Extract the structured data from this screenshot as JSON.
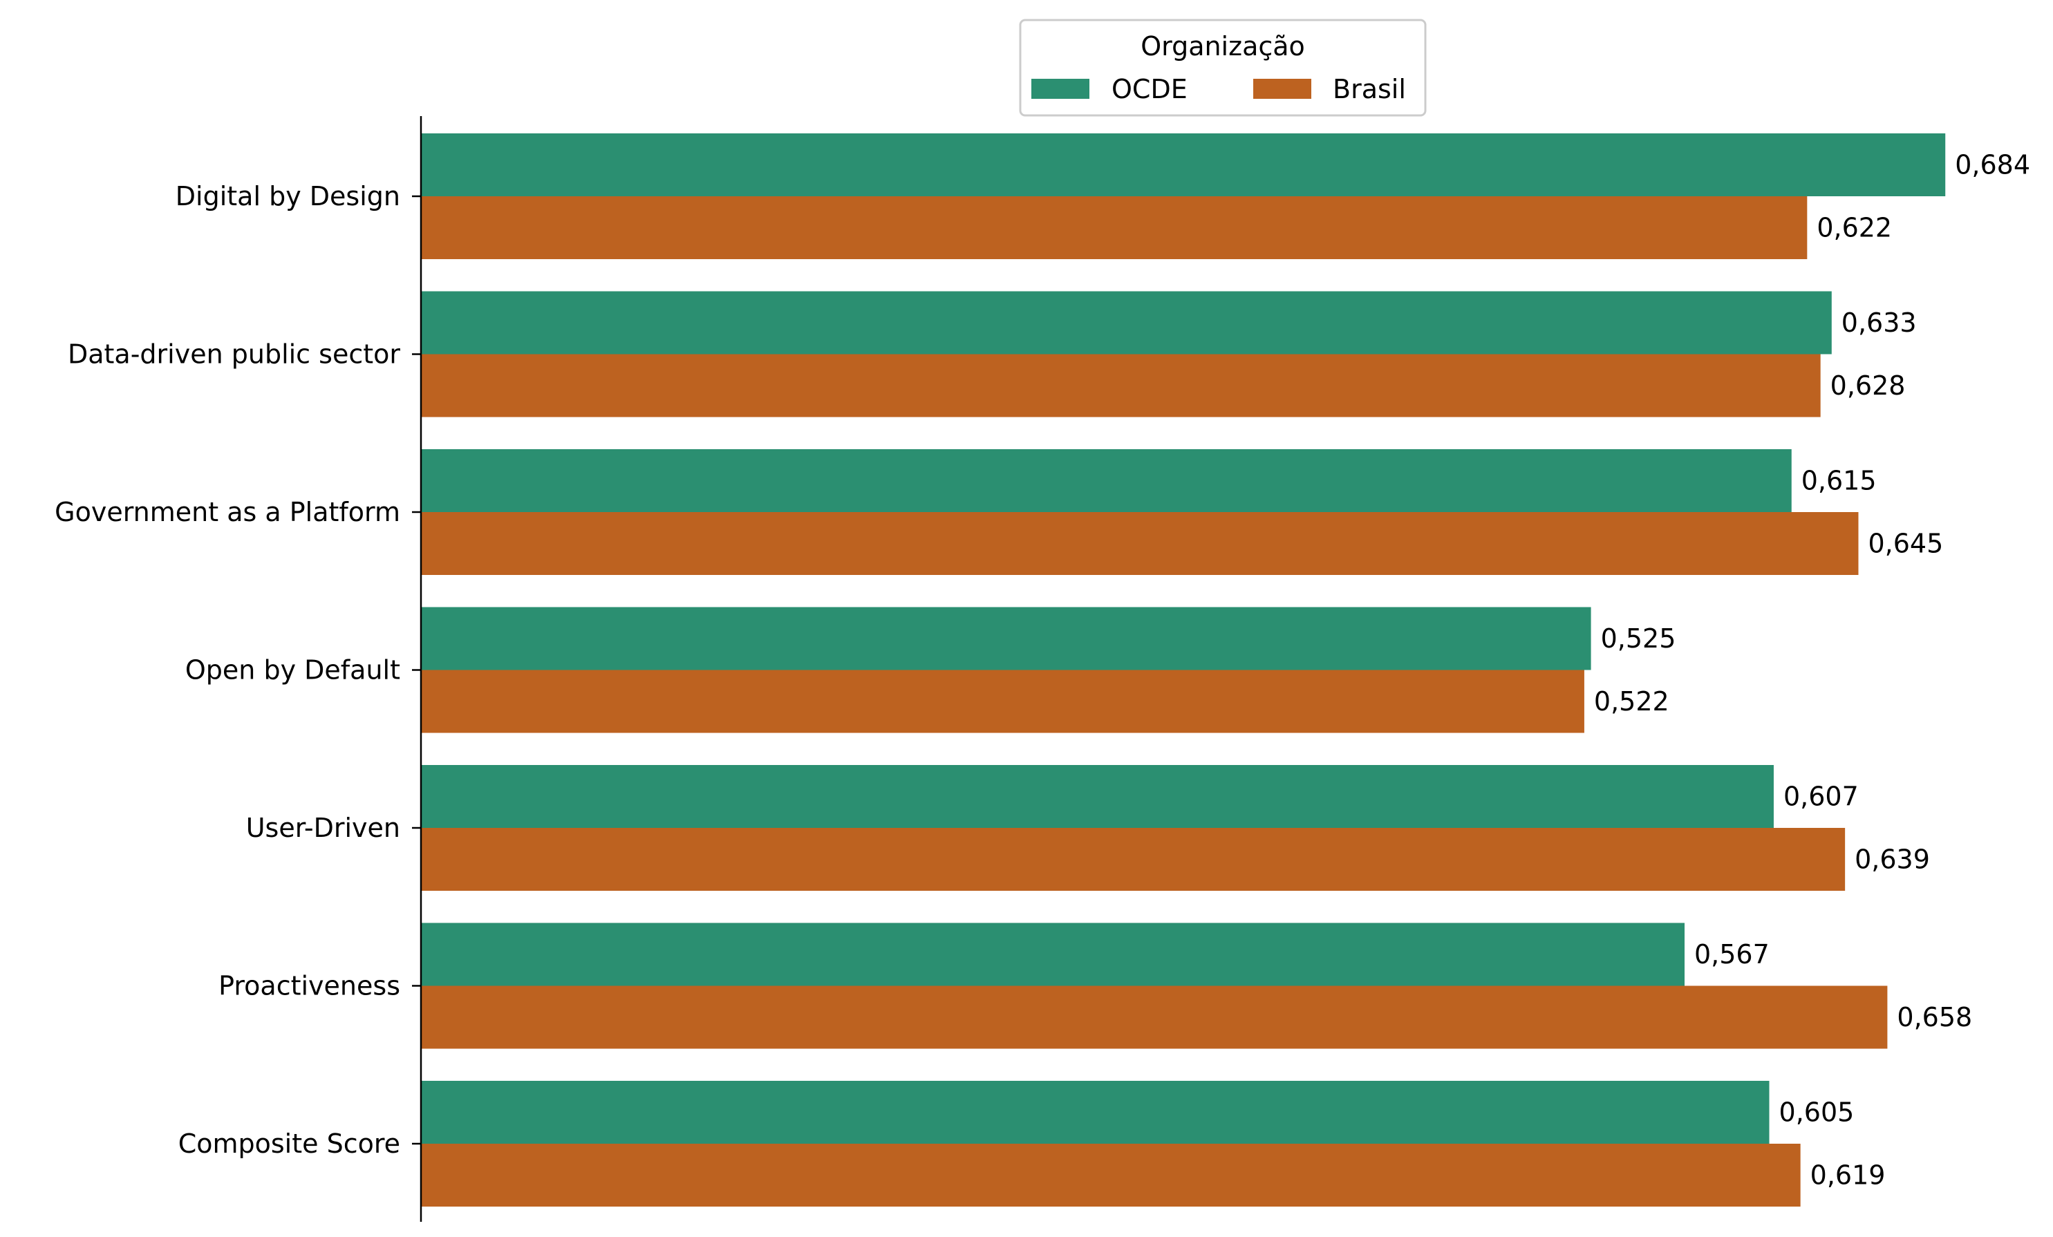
{
  "chart_data": {
    "type": "bar",
    "orientation": "horizontal",
    "categories": [
      "Digital by Design",
      "Data-driven public sector",
      "Government as a Platform",
      "Open by Default",
      "User-Driven",
      "Proactiveness",
      "Composite Score"
    ],
    "series": [
      {
        "name": "OCDE",
        "color": "#2b8f71",
        "values": [
          0.684,
          0.633,
          0.615,
          0.525,
          0.607,
          0.567,
          0.605
        ],
        "labels": [
          "0,684",
          "0,633",
          "0,615",
          "0,525",
          "0,607",
          "0,567",
          "0,605"
        ]
      },
      {
        "name": "Brasil",
        "color": "#bd6220",
        "values": [
          0.622,
          0.628,
          0.645,
          0.522,
          0.639,
          0.658,
          0.619
        ],
        "labels": [
          "0,622",
          "0,628",
          "0,645",
          "0,522",
          "0,639",
          "0,658",
          "0,619"
        ]
      }
    ],
    "legend": {
      "title": "Organização",
      "placement": "top-center"
    },
    "xlim": [
      0,
      0.72
    ],
    "grid": false
  }
}
